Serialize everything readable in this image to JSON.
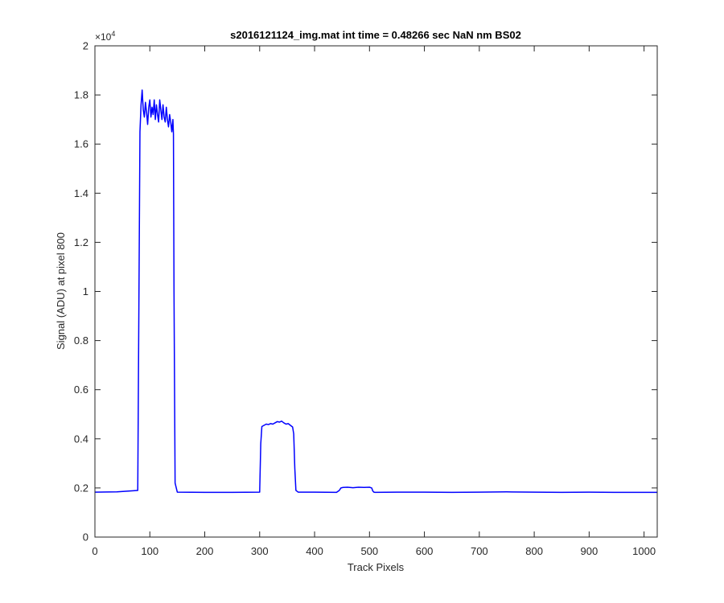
{
  "chart_data": {
    "type": "line",
    "title": "s2016121124_img.mat int time = 0.48266 sec  NaN nm BS02",
    "xlabel": "Track Pixels",
    "ylabel": "Signal (ADU) at pixel 800",
    "xlim": [
      0,
      1024
    ],
    "ylim": [
      0,
      20000
    ],
    "x_ticks": [
      0,
      100,
      200,
      300,
      400,
      500,
      600,
      700,
      800,
      900,
      1000
    ],
    "y_ticks": [
      0,
      0.2,
      0.4,
      0.6,
      0.8,
      1,
      1.2,
      1.4,
      1.6,
      1.8,
      2
    ],
    "y_tick_labels": [
      "0",
      "0.2",
      "0.4",
      "0.6",
      "0.8",
      "1",
      "1.2",
      "1.4",
      "1.6",
      "1.8",
      "2"
    ],
    "y_exponent_base": "×10",
    "y_exponent": "4",
    "grid": false,
    "line_color": "#0000ff",
    "series": [
      {
        "x": [
          0,
          40,
          78,
          82,
          84,
          86,
          88,
          90,
          92,
          94,
          96,
          98,
          100,
          102,
          104,
          106,
          108,
          110,
          112,
          114,
          116,
          118,
          120,
          122,
          124,
          126,
          128,
          130,
          132,
          134,
          136,
          138,
          140,
          142,
          143,
          144,
          146,
          150,
          200,
          250,
          300,
          302,
          304,
          308,
          312,
          316,
          320,
          324,
          328,
          332,
          336,
          340,
          344,
          348,
          352,
          356,
          360,
          362,
          364,
          366,
          370,
          400,
          440,
          445,
          448,
          452,
          460,
          470,
          480,
          490,
          500,
          504,
          506,
          508,
          510,
          550,
          600,
          650,
          700,
          750,
          800,
          850,
          900,
          950,
          1000,
          1024
        ],
        "y": [
          1830,
          1840,
          1900,
          16500,
          17600,
          18200,
          17400,
          17100,
          17700,
          17300,
          16800,
          17500,
          17800,
          17100,
          17500,
          17200,
          17800,
          17000,
          17600,
          17200,
          16900,
          17800,
          17400,
          17000,
          17600,
          17100,
          16900,
          17500,
          17000,
          16700,
          17200,
          16900,
          16500,
          17000,
          16400,
          10000,
          2200,
          1830,
          1820,
          1820,
          1830,
          3800,
          4500,
          4550,
          4600,
          4580,
          4620,
          4600,
          4650,
          4700,
          4680,
          4720,
          4650,
          4600,
          4620,
          4550,
          4480,
          4200,
          2800,
          1900,
          1830,
          1830,
          1820,
          1900,
          2000,
          2020,
          2030,
          2010,
          2030,
          2020,
          2030,
          2000,
          1880,
          1830,
          1820,
          1830,
          1830,
          1820,
          1830,
          1840,
          1830,
          1820,
          1830,
          1820,
          1820,
          1820
        ]
      }
    ]
  }
}
